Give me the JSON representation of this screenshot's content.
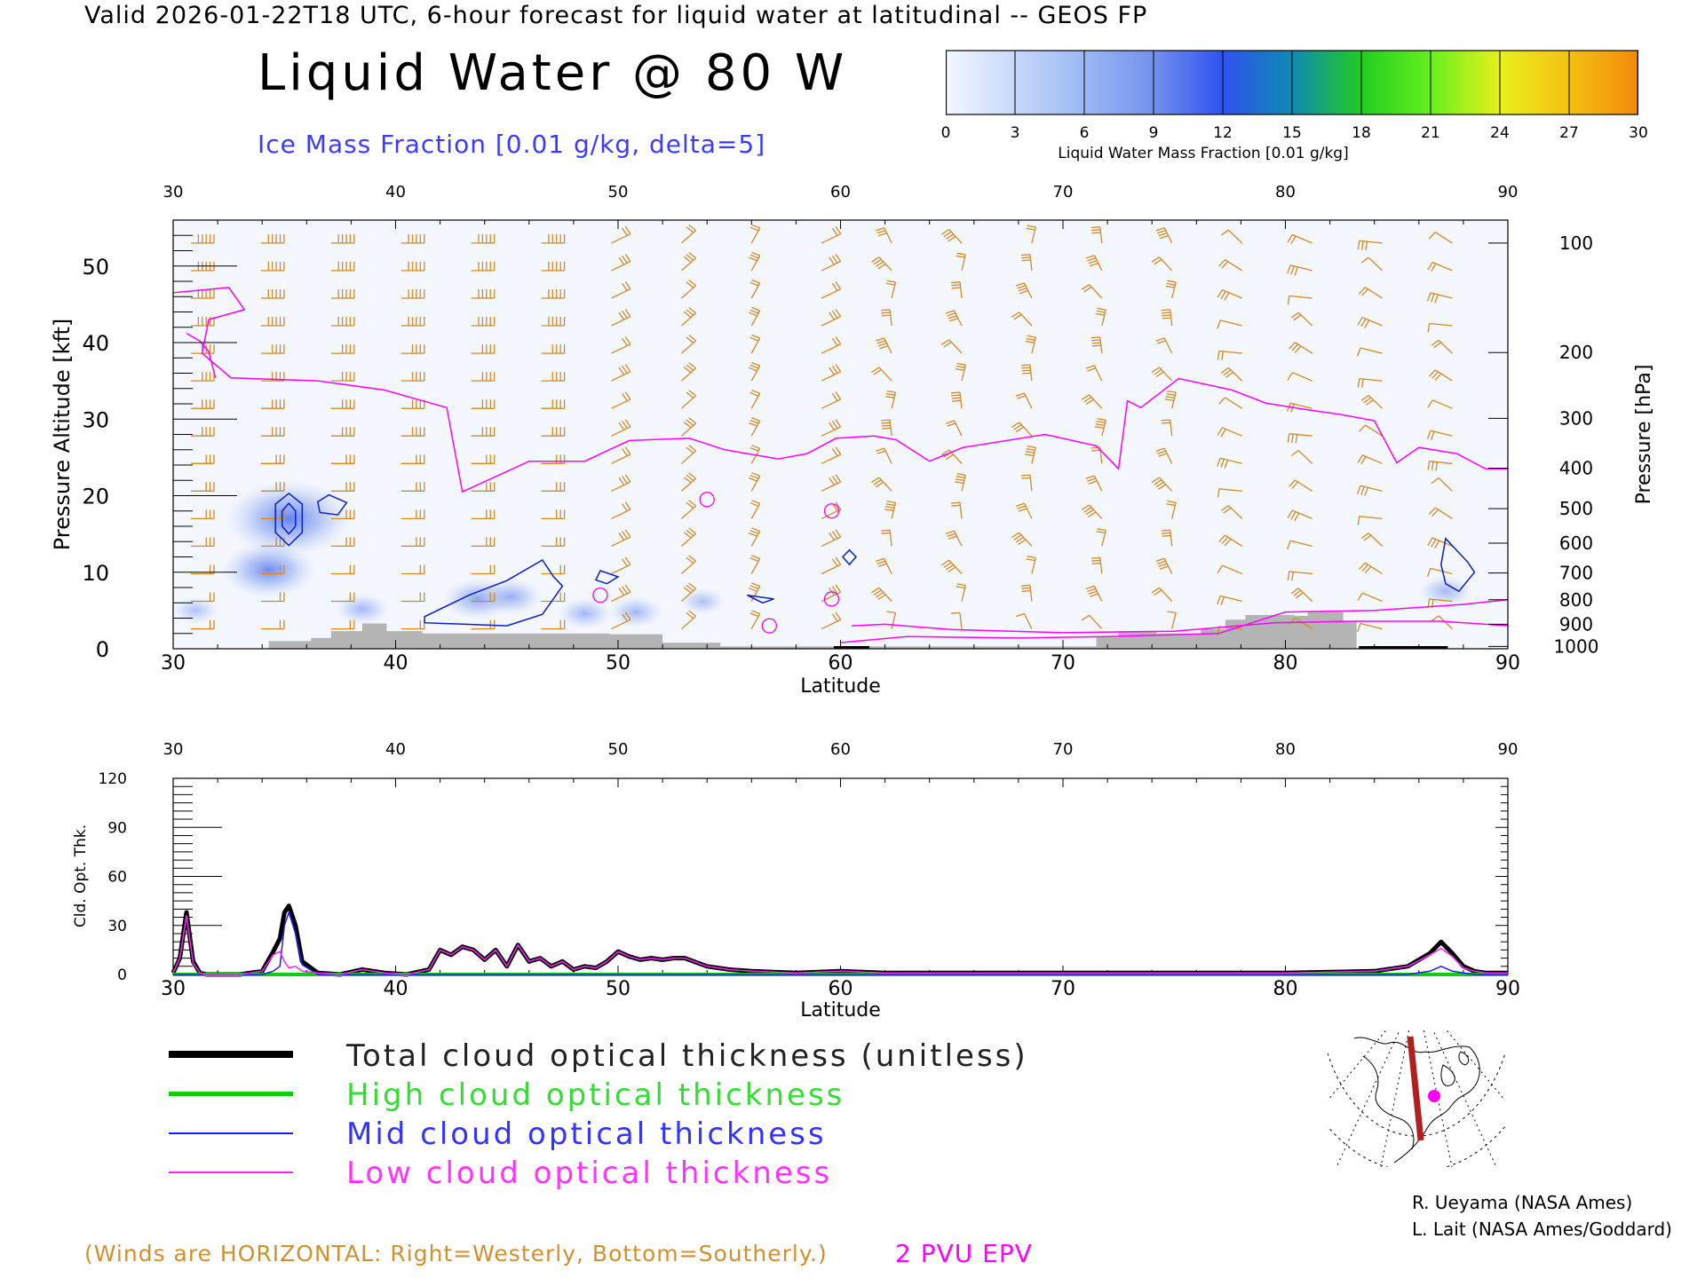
{
  "header": {
    "valid_line": "Valid 2026-01-22T18 UTC, 6-hour forecast for liquid water at latitudinal -- GEOS FP",
    "title": "Liquid Water @ 80 W",
    "subtitle": "Ice Mass Fraction [0.01 g/kg, delta=5]"
  },
  "colorbar": {
    "label": "Liquid Water Mass Fraction [0.01 g/kg]",
    "ticks": [
      "0",
      "3",
      "6",
      "9",
      "12",
      "15",
      "18",
      "21",
      "24",
      "27",
      "30"
    ],
    "colors": [
      "#f4f8ff",
      "#c6d8fa",
      "#9bb8f4",
      "#7390ec",
      "#2f52f0",
      "#0e8ab0",
      "#22cc22",
      "#66f01e",
      "#e8f01c",
      "#f5c012",
      "#f28a0a",
      "#f53c0a"
    ]
  },
  "colors": {
    "ice_contour": "#0a1ec8",
    "wind_barb": "#d08a28",
    "epv": "#ff00ff",
    "terrain": "#b4b4b4",
    "total": "#000000",
    "high": "#11cc11",
    "mid": "#1a1aff",
    "low": "#ff22ff"
  },
  "chart_data": [
    {
      "type": "heatmap",
      "title": "Liquid Water @ 80 W",
      "xlabel": "Latitude",
      "ylabel": "Pressure Altitude [kft]",
      "y2label": "Pressure [hPa]",
      "xlim": [
        30,
        90
      ],
      "ylim": [
        0,
        56
      ],
      "x_ticks": [
        "30",
        "40",
        "50",
        "60",
        "70",
        "80",
        "90"
      ],
      "y_ticks": [
        "0",
        "10",
        "20",
        "30",
        "40",
        "50"
      ],
      "pressure_ticks": [
        {
          "label": "100",
          "alt": 53.0
        },
        {
          "label": "200",
          "alt": 38.7
        },
        {
          "label": "300",
          "alt": 30.1
        },
        {
          "label": "400",
          "alt": 23.6
        },
        {
          "label": "500",
          "alt": 18.3
        },
        {
          "label": "600",
          "alt": 13.8
        },
        {
          "label": "700",
          "alt": 9.9
        },
        {
          "label": "800",
          "alt": 6.4
        },
        {
          "label": "900",
          "alt": 3.2
        },
        {
          "label": "1000",
          "alt": 0.3
        }
      ],
      "ice_blobs": [
        {
          "lat": 35.2,
          "alt": 17.0,
          "value": 12
        },
        {
          "lat": 34.3,
          "alt": 10.3,
          "value": 8
        },
        {
          "lat": 38.5,
          "alt": 5.2,
          "value": 3
        },
        {
          "lat": 31.0,
          "alt": 5.0,
          "value": 2
        },
        {
          "lat": 43.7,
          "alt": 6.5,
          "value": 5
        },
        {
          "lat": 45.2,
          "alt": 6.8,
          "value": 4
        },
        {
          "lat": 48.5,
          "alt": 4.6,
          "value": 3
        },
        {
          "lat": 50.8,
          "alt": 4.8,
          "value": 3
        },
        {
          "lat": 53.8,
          "alt": 6.2,
          "value": 2
        },
        {
          "lat": 87.2,
          "alt": 7.5,
          "value": 3
        }
      ],
      "epv_2pvu": [
        [
          30,
          46.5
        ],
        [
          32.5,
          47.2
        ],
        [
          33.2,
          44.3
        ],
        [
          31.6,
          43.0
        ],
        [
          31.3,
          38.6
        ],
        [
          32.6,
          35.4
        ],
        [
          36.5,
          35.0
        ],
        [
          39.5,
          33.8
        ],
        [
          42.3,
          31.5
        ],
        [
          43.0,
          20.5
        ],
        [
          46,
          24.5
        ],
        [
          48.5,
          24.5
        ],
        [
          50.5,
          27.2
        ],
        [
          53.2,
          27.5
        ],
        [
          54.8,
          26.0
        ],
        [
          57.2,
          24.8
        ],
        [
          58.5,
          25.5
        ],
        [
          59.8,
          27.5
        ],
        [
          61.5,
          27.8
        ],
        [
          62.5,
          27.3
        ],
        [
          64.0,
          24.5
        ],
        [
          65.5,
          26.3
        ],
        [
          69.2,
          28.0
        ],
        [
          71.5,
          26.5
        ],
        [
          72.5,
          23.5
        ],
        [
          72.9,
          32.4
        ],
        [
          73.5,
          31.5
        ],
        [
          75.2,
          35.3
        ],
        [
          77.6,
          33.8
        ],
        [
          79.1,
          32.1
        ],
        [
          80.8,
          31.3
        ],
        [
          82.5,
          30.6
        ],
        [
          84.0,
          29.8
        ],
        [
          85.0,
          24.3
        ],
        [
          86.0,
          26.3
        ],
        [
          87.7,
          25.5
        ],
        [
          89.0,
          23.5
        ],
        [
          90,
          23.5
        ]
      ],
      "epv_lower": [
        [
          30.6,
          41.2
        ],
        [
          31.2,
          40.2
        ],
        [
          31.6,
          38.8
        ],
        [
          31.9,
          35.4
        ]
      ],
      "epv_low": [
        [
          60.5,
          3.0
        ],
        [
          62,
          3.2
        ],
        [
          65,
          2.5
        ],
        [
          70,
          2.1
        ],
        [
          75,
          2.3
        ],
        [
          79.5,
          3.4
        ],
        [
          83,
          3.6
        ],
        [
          87,
          3.6
        ],
        [
          90,
          3.0
        ]
      ],
      "epv_low2": [
        [
          60,
          0.8
        ],
        [
          63,
          1.6
        ],
        [
          68,
          1.4
        ],
        [
          72,
          1.6
        ],
        [
          77,
          2.0
        ],
        [
          80,
          4.8
        ],
        [
          84,
          5.0
        ],
        [
          88,
          5.8
        ],
        [
          90,
          6.4
        ]
      ],
      "ice_contours": [
        [
          [
            35.2,
            20.3
          ],
          [
            35.8,
            18.9
          ],
          [
            35.8,
            15.2
          ],
          [
            35.2,
            13.5
          ],
          [
            34.6,
            15.2
          ],
          [
            34.6,
            18.9
          ],
          [
            35.2,
            20.3
          ]
        ],
        [
          [
            35.2,
            19.0
          ],
          [
            35.5,
            18.0
          ],
          [
            35.5,
            16.0
          ],
          [
            35.2,
            15.0
          ],
          [
            34.9,
            16.0
          ],
          [
            34.9,
            18.0
          ],
          [
            35.2,
            19.0
          ]
        ],
        [
          [
            37.0,
            20.1
          ],
          [
            37.8,
            19.1
          ],
          [
            37.4,
            17.5
          ],
          [
            36.6,
            17.8
          ],
          [
            36.5,
            19.2
          ],
          [
            37.0,
            20.1
          ]
        ],
        [
          [
            41.3,
            4.2
          ],
          [
            43.3,
            7.0
          ],
          [
            45.0,
            8.9
          ],
          [
            46.6,
            11.6
          ],
          [
            47.1,
            9.4
          ],
          [
            47.5,
            8.2
          ],
          [
            46.6,
            4.5
          ],
          [
            45.0,
            3.0
          ],
          [
            41.3,
            3.4
          ],
          [
            41.3,
            4.2
          ]
        ],
        [
          [
            49.2,
            10.2
          ],
          [
            50.0,
            9.4
          ],
          [
            49.5,
            8.5
          ],
          [
            49.0,
            9.0
          ],
          [
            49.2,
            10.2
          ]
        ],
        [
          [
            55.8,
            7.0
          ],
          [
            57.0,
            6.5
          ],
          [
            56.5,
            6.0
          ],
          [
            55.8,
            7.0
          ]
        ],
        [
          [
            60.4,
            12.9
          ],
          [
            60.7,
            12.0
          ],
          [
            60.4,
            11.0
          ],
          [
            60.1,
            12.0
          ],
          [
            60.4,
            12.9
          ]
        ],
        [
          [
            87.2,
            14.4
          ],
          [
            88.2,
            11.3
          ],
          [
            88.5,
            10.0
          ],
          [
            87.8,
            7.5
          ],
          [
            87.2,
            8.5
          ],
          [
            87.0,
            11.0
          ],
          [
            87.2,
            14.4
          ]
        ]
      ],
      "terrain": [
        [
          34.3,
          1.0
        ],
        [
          36.2,
          1.4
        ],
        [
          37.1,
          2.3
        ],
        [
          38.5,
          3.3
        ],
        [
          39.6,
          2.3
        ],
        [
          41.2,
          2.0
        ],
        [
          49.6,
          1.9
        ],
        [
          52.0,
          0.8
        ],
        [
          54.6,
          0.3
        ],
        [
          71.5,
          1.5
        ],
        [
          72.5,
          2.3
        ],
        [
          74.2,
          2.0
        ],
        [
          76.2,
          2.6
        ],
        [
          77.3,
          3.8
        ],
        [
          78.2,
          4.4
        ],
        [
          80.4,
          4.3
        ],
        [
          81.0,
          4.8
        ],
        [
          82.6,
          3.6
        ]
      ]
    },
    {
      "type": "line",
      "xlabel": "Latitude",
      "ylabel": "Cld. Opt. Thk.",
      "xlim": [
        30,
        90
      ],
      "ylim": [
        0,
        120
      ],
      "x_ticks": [
        "30",
        "40",
        "50",
        "60",
        "70",
        "80",
        "90"
      ],
      "y_ticks": [
        "0",
        "30",
        "60",
        "90",
        "120"
      ],
      "x": [
        30,
        30.3,
        30.6,
        30.9,
        31.2,
        31.5,
        33,
        34,
        34.5,
        34.8,
        35.0,
        35.2,
        35.5,
        35.8,
        36.5,
        37.5,
        38.5,
        39.5,
        40.5,
        41.5,
        42.0,
        42.5,
        43.0,
        43.5,
        44.0,
        44.5,
        45.0,
        45.5,
        46.0,
        46.5,
        47.0,
        47.5,
        48.0,
        48.5,
        49.0,
        49.5,
        50.0,
        50.5,
        51.0,
        51.5,
        52.0,
        52.5,
        53.0,
        54.0,
        55.0,
        56.0,
        58.0,
        60.0,
        62.0,
        65.0,
        70.0,
        75.0,
        80.0,
        84.0,
        85.5,
        86.5,
        87.0,
        87.5,
        88.0,
        88.5,
        89.0,
        90.0
      ],
      "series": [
        {
          "name": "Total cloud optical thickness (unitless)",
          "values": [
            1,
            10,
            38,
            8,
            1,
            0,
            0,
            2,
            14,
            22,
            38,
            42,
            30,
            8,
            1,
            0,
            3,
            1,
            0,
            3,
            15,
            12,
            17,
            15,
            9,
            15,
            5,
            18,
            8,
            10,
            5,
            8,
            3,
            5,
            4,
            8,
            14,
            11,
            9,
            10,
            9,
            10,
            10,
            5,
            3,
            2,
            1,
            2,
            1,
            1,
            1,
            1,
            1,
            2,
            5,
            13,
            20,
            13,
            5,
            2,
            1,
            1
          ]
        },
        {
          "name": "High cloud optical thickness",
          "values": [
            0,
            0,
            0,
            0,
            0,
            0,
            0,
            0,
            0,
            0,
            0,
            0,
            0,
            0,
            0,
            0,
            0,
            0,
            0,
            0,
            0,
            0,
            0,
            0,
            0,
            0,
            0,
            0,
            0,
            0,
            0,
            0,
            0,
            0,
            0,
            0,
            0,
            0,
            0,
            0,
            0,
            0,
            0,
            0,
            0,
            0,
            0,
            0,
            0,
            0,
            0,
            0,
            0,
            0,
            0,
            0,
            0,
            0,
            0,
            0,
            0,
            0
          ]
        },
        {
          "name": "Mid cloud optical thickness",
          "values": [
            0,
            0,
            0,
            0,
            0,
            0,
            0,
            0,
            2,
            5,
            30,
            38,
            25,
            6,
            0,
            0,
            0,
            0,
            0,
            0,
            0,
            0,
            0,
            0,
            0,
            0,
            0,
            0,
            0,
            0,
            0,
            0,
            0,
            0,
            0,
            0,
            0,
            0,
            0,
            0,
            0,
            0,
            0,
            0,
            0,
            0,
            0,
            0,
            0,
            0,
            0,
            0,
            0,
            0,
            0,
            2,
            5,
            2,
            1,
            0,
            0,
            0
          ]
        },
        {
          "name": "Low cloud optical thickness",
          "values": [
            1,
            10,
            36,
            7,
            1,
            0,
            0,
            2,
            12,
            14,
            8,
            4,
            5,
            2,
            1,
            0,
            3,
            1,
            0,
            3,
            15,
            12,
            17,
            15,
            9,
            15,
            5,
            18,
            8,
            10,
            5,
            8,
            3,
            5,
            4,
            8,
            14,
            11,
            9,
            10,
            9,
            10,
            10,
            5,
            3,
            2,
            1,
            2,
            1,
            1,
            1,
            1,
            1,
            2,
            5,
            12,
            16,
            11,
            4,
            2,
            1,
            1
          ]
        }
      ]
    }
  ],
  "legend": {
    "total": "Total cloud optical thickness (unitless)",
    "high": "High cloud optical thickness",
    "mid": "Mid cloud optical thickness",
    "low": "Low cloud optical thickness"
  },
  "footer": {
    "winds_note": "(Winds are HORIZONTAL: Right=Westerly, Bottom=Southerly.)",
    "pv_label": "2 PVU EPV",
    "credit_1": "R. Ueyama (NASA Ames)",
    "credit_2": "L. Lait (NASA Ames/Goddard)"
  }
}
